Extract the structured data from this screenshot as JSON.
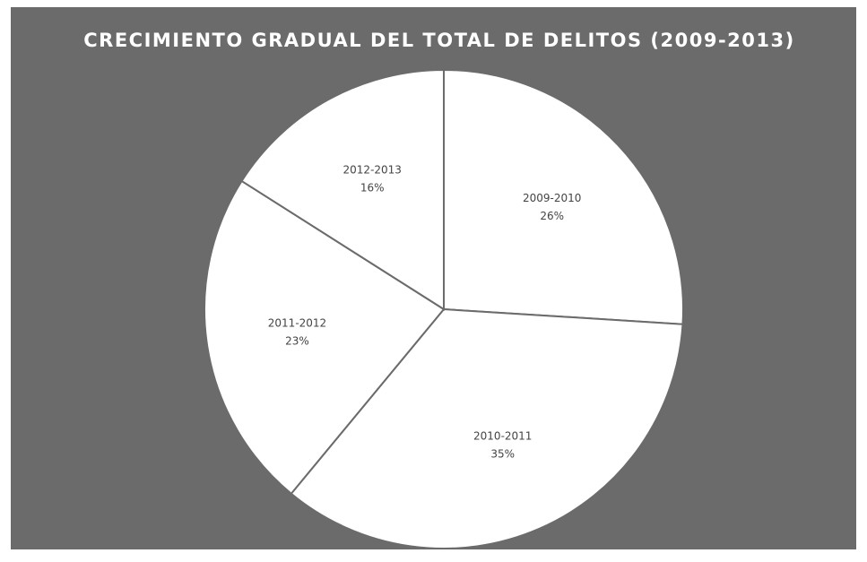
{
  "chart_data": {
    "type": "pie",
    "title": "CRECIMIENTO GRADUAL DEL TOTAL DE DELITOS (2009-2013)",
    "categories": [
      "2009-2010",
      "2010-2011",
      "2011-2012",
      "2012-2013"
    ],
    "values": [
      26,
      35,
      23,
      16
    ],
    "value_labels": [
      "26%",
      "35%",
      "23%",
      "16%"
    ],
    "color": "#ffffff"
  }
}
